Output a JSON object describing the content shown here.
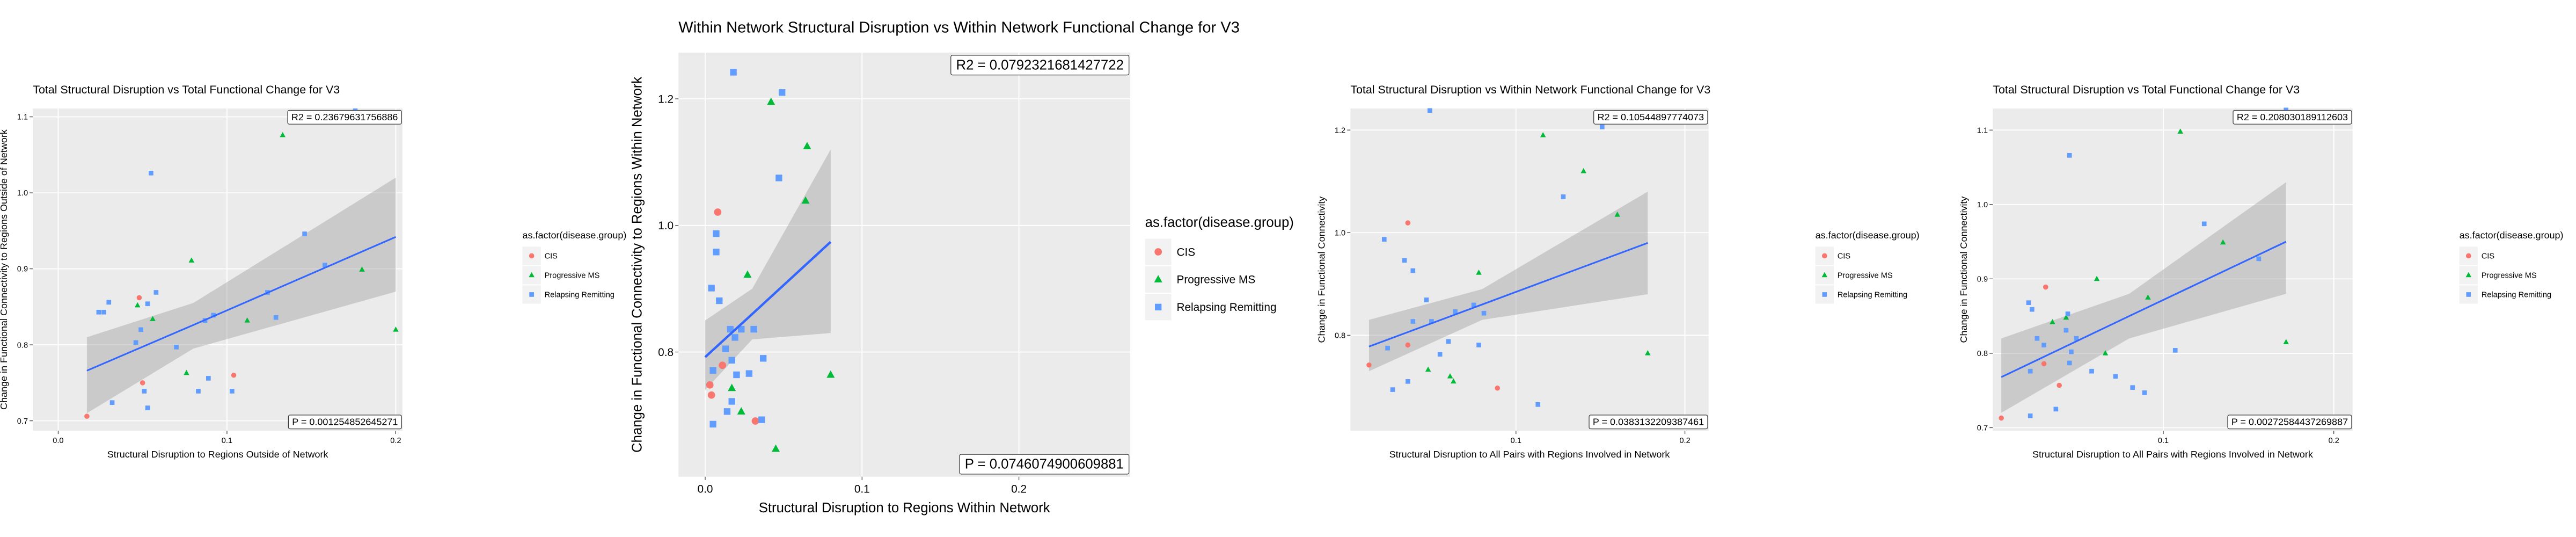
{
  "chart_data": [
    {
      "type": "scatter",
      "title": "Total Structural Disruption vs Total Functional Change for V3",
      "x_label": "Structural Disruption to Regions Outside of Network",
      "y_label": "Change in Functional Connectivity to Regions Outside of Network",
      "legend_title": "as.factor(disease.group)",
      "r2_label": "R2 =  0.23679631756886",
      "p_label": "P =  0.001254852645271",
      "xlim": [
        -0.015,
        0.204
      ],
      "ylim": [
        0.687,
        1.111
      ],
      "xticks": [
        {
          "value": 0,
          "label": "0.0"
        },
        0.1,
        0.2
      ],
      "yticks": [
        0.7,
        0.8,
        0.9,
        {
          "value": 1,
          "label": "1.0"
        },
        1.1
      ],
      "grid": true,
      "series": [
        {
          "name": "CIS",
          "color": "#F8766D",
          "shape": "circle",
          "x": [
            0.017,
            0.048,
            0.104,
            0.05
          ],
          "y": [
            0.706,
            0.862,
            0.76,
            0.75
          ]
        },
        {
          "name": "Progressive MS",
          "color": "#00BA38",
          "shape": "triangle",
          "x": [
            0.133,
            0.079,
            0.18,
            0.2,
            0.047,
            0.112,
            0.076,
            0.056
          ],
          "y": [
            1.076,
            0.911,
            0.899,
            0.82,
            0.852,
            0.832,
            0.763,
            0.834
          ]
        },
        {
          "name": "Relapsing Remitting",
          "color": "#619CFF",
          "shape": "square",
          "x": [
            0.176,
            0.055,
            0.146,
            0.158,
            0.03,
            0.024,
            0.027,
            0.058,
            0.053,
            0.092,
            0.087,
            0.124,
            0.129,
            0.049,
            0.046,
            0.089,
            0.083,
            0.103,
            0.051,
            0.032,
            0.053,
            0.07
          ],
          "y": [
            1.108,
            1.026,
            0.946,
            0.905,
            0.856,
            0.843,
            0.843,
            0.869,
            0.854,
            0.839,
            0.832,
            0.869,
            0.836,
            0.82,
            0.803,
            0.756,
            0.739,
            0.739,
            0.739,
            0.724,
            0.717,
            0.797
          ]
        }
      ],
      "fit": {
        "color": "#3366FF",
        "x": [
          0.017,
          0.08,
          0.2
        ],
        "y": [
          0.766,
          0.826,
          0.942
        ],
        "lower": [
          0.71,
          0.795,
          0.87
        ],
        "upper": [
          0.81,
          0.855,
          1.02
        ]
      }
    },
    {
      "type": "scatter",
      "title": "Within Network Structural Disruption vs Within Network Functional Change for V3",
      "x_label": "Structural Disruption to Regions Within Network",
      "y_label": "Change in Functional Connectivity to Regions Within Network",
      "legend_title": "as.factor(disease.group)",
      "r2_label": "R2 =  0.0792321681427722",
      "p_label": "P =  0.0746074900609881",
      "xlim": [
        -0.017,
        0.271
      ],
      "ylim": [
        0.603,
        1.273
      ],
      "xticks": [
        {
          "value": 0,
          "label": "0.0"
        },
        0.1,
        0.2
      ],
      "yticks": [
        0.8,
        {
          "value": 1,
          "label": "1.0"
        },
        1.2
      ],
      "grid": true,
      "series": [
        {
          "name": "CIS",
          "color": "#F8766D",
          "shape": "circle",
          "x": [
            0.008,
            0.003,
            0.032,
            0.004,
            0.011
          ],
          "y": [
            1.021,
            0.748,
            0.691,
            0.732,
            0.779
          ]
        },
        {
          "name": "Progressive MS",
          "color": "#00BA38",
          "shape": "triangle",
          "x": [
            0.042,
            0.065,
            0.064,
            0.027,
            0.08,
            0.045,
            0.017,
            0.023
          ],
          "y": [
            1.195,
            1.125,
            1.039,
            0.922,
            0.764,
            0.647,
            0.743,
            0.706
          ]
        },
        {
          "name": "Relapsing Remitting",
          "color": "#619CFF",
          "shape": "square",
          "x": [
            0.018,
            0.049,
            0.047,
            0.007,
            0.007,
            0.004,
            0.009,
            0.016,
            0.019,
            0.013,
            0.023,
            0.031,
            0.037,
            0.017,
            0.005,
            0.005,
            0.014,
            0.028,
            0.02,
            0.036,
            0.017
          ],
          "y": [
            1.242,
            1.21,
            1.075,
            0.987,
            0.958,
            0.901,
            0.881,
            0.836,
            0.823,
            0.805,
            0.836,
            0.836,
            0.79,
            0.787,
            0.771,
            0.686,
            0.706,
            0.766,
            0.764,
            0.693,
            0.722
          ]
        }
      ],
      "fit": {
        "color": "#3366FF",
        "x": [
          0,
          0.03,
          0.08
        ],
        "y": [
          0.792,
          0.86,
          0.974
        ],
        "lower": [
          0.74,
          0.82,
          0.83
        ],
        "upper": [
          0.85,
          0.9,
          1.12
        ]
      }
    },
    {
      "type": "scatter",
      "title": "Total Structural Disruption vs Within Network Functional Change for V3",
      "x_label": "Structural Disruption to All Pairs with Regions Involved in Network",
      "y_label": "Change in Functional Connectivity",
      "legend_title": "as.factor(disease.group)",
      "r2_label": "R2 =  0.10544897774073",
      "p_label": "P =  0.0383132209387461",
      "xlim": [
        0.002,
        0.214
      ],
      "ylim": [
        0.614,
        1.242
      ],
      "xticks": [
        0.1,
        0.2
      ],
      "yticks": [
        0.8,
        {
          "value": 1,
          "label": "1.0"
        },
        1.2
      ],
      "grid": true,
      "series": [
        {
          "name": "CIS",
          "color": "#F8766D",
          "shape": "circle",
          "x": [
            0.036,
            0.089,
            0.013,
            0.036
          ],
          "y": [
            1.019,
            0.697,
            0.742,
            0.781
          ]
        },
        {
          "name": "Progressive MS",
          "color": "#00BA38",
          "shape": "triangle",
          "x": [
            0.116,
            0.14,
            0.16,
            0.178,
            0.078,
            0.061,
            0.063,
            0.048
          ],
          "y": [
            1.19,
            1.12,
            1.035,
            0.765,
            0.922,
            0.72,
            0.71,
            0.733
          ]
        },
        {
          "name": "Relapsing Remitting",
          "color": "#619CFF",
          "shape": "square",
          "x": [
            0.049,
            0.151,
            0.128,
            0.022,
            0.034,
            0.039,
            0.047,
            0.075,
            0.081,
            0.064,
            0.039,
            0.05,
            0.06,
            0.078,
            0.024,
            0.036,
            0.027,
            0.113,
            0.055
          ],
          "y": [
            1.238,
            1.206,
            1.07,
            0.987,
            0.946,
            0.926,
            0.869,
            0.859,
            0.843,
            0.846,
            0.827,
            0.827,
            0.788,
            0.781,
            0.775,
            0.71,
            0.694,
            0.665,
            0.763
          ]
        }
      ],
      "fit": {
        "color": "#3366FF",
        "x": [
          0.013,
          0.08,
          0.178
        ],
        "y": [
          0.778,
          0.86,
          0.98
        ],
        "lower": [
          0.73,
          0.83,
          0.88
        ],
        "upper": [
          0.83,
          0.89,
          1.08
        ]
      }
    },
    {
      "type": "scatter",
      "title": "Total Structural Disruption vs Total Functional Change for V3",
      "x_label": "Structural Disruption to All Pairs with Regions Involved in Network",
      "y_label": "Change in Functional Connectivity",
      "legend_title": "as.factor(disease.group)",
      "r2_label": "R2 =  0.208030189112603",
      "p_label": "P =  0.00272584437269887",
      "xlim": [
        0,
        0.211
      ],
      "ylim": [
        0.696,
        1.129
      ],
      "xticks": [
        0.1,
        0.2
      ],
      "yticks": [
        0.7,
        0.8,
        0.9,
        {
          "value": 1,
          "label": "1.0"
        },
        1.1
      ],
      "grid": true,
      "series": [
        {
          "name": "CIS",
          "color": "#F8766D",
          "shape": "circle",
          "x": [
            0.005,
            0.031,
            0.03,
            0.039
          ],
          "y": [
            0.713,
            0.889,
            0.786,
            0.757
          ]
        },
        {
          "name": "Progressive MS",
          "color": "#00BA38",
          "shape": "triangle",
          "x": [
            0.11,
            0.135,
            0.172,
            0.061,
            0.091,
            0.066,
            0.035,
            0.043
          ],
          "y": [
            1.098,
            0.949,
            0.815,
            0.9,
            0.875,
            0.8,
            0.842,
            0.848
          ]
        },
        {
          "name": "Relapsing Remitting",
          "color": "#619CFF",
          "shape": "square",
          "x": [
            0.172,
            0.045,
            0.124,
            0.156,
            0.021,
            0.023,
            0.044,
            0.043,
            0.049,
            0.046,
            0.026,
            0.03,
            0.045,
            0.058,
            0.072,
            0.082,
            0.089,
            0.107,
            0.022,
            0.037,
            0.022
          ],
          "y": [
            1.127,
            1.066,
            0.974,
            0.927,
            0.868,
            0.859,
            0.853,
            0.831,
            0.82,
            0.802,
            0.82,
            0.811,
            0.787,
            0.776,
            0.769,
            0.754,
            0.747,
            0.804,
            0.776,
            0.725,
            0.716
          ]
        }
      ],
      "fit": {
        "color": "#3366FF",
        "x": [
          0.005,
          0.08,
          0.172
        ],
        "y": [
          0.768,
          0.85,
          0.95
        ],
        "lower": [
          0.72,
          0.82,
          0.88
        ],
        "upper": [
          0.82,
          0.88,
          1.03
        ]
      }
    }
  ]
}
